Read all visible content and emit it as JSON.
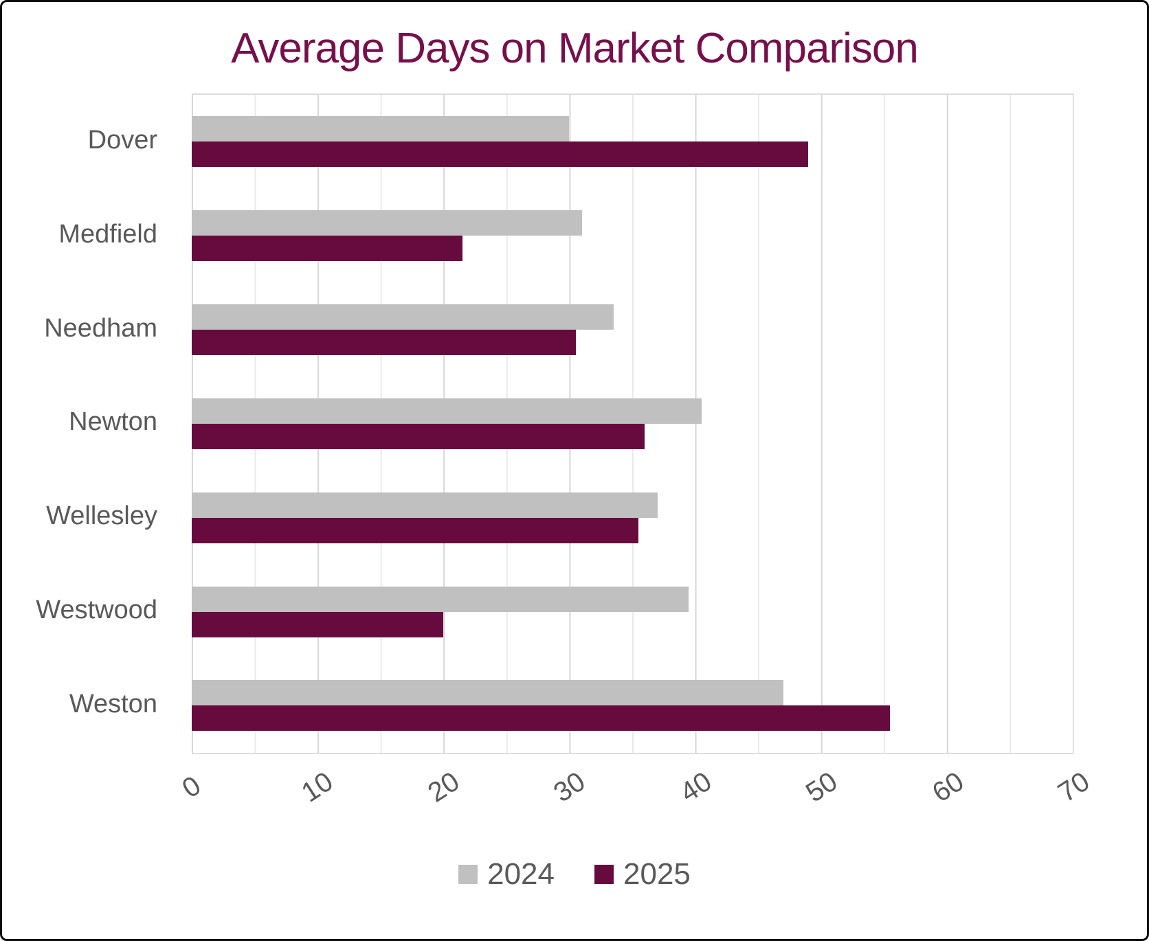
{
  "title": {
    "text": "Average Days on Market Comparison",
    "color": "#75104B"
  },
  "chart_data": {
    "type": "bar",
    "orientation": "horizontal",
    "title": "Average Days on Market Comparison",
    "xlabel": "",
    "ylabel": "",
    "categories": [
      "Dover",
      "Medfield",
      "Needham",
      "Newton",
      "Wellesley",
      "Westwood",
      "Weston"
    ],
    "series": [
      {
        "name": "2024",
        "color": "#C0C0C0",
        "values": [
          30,
          31,
          33.5,
          40.5,
          37,
          39.5,
          47
        ]
      },
      {
        "name": "2025",
        "color": "#670B3E",
        "values": [
          49,
          21.5,
          30.5,
          36,
          35.5,
          20,
          55.5
        ]
      }
    ],
    "xlim": [
      0,
      70
    ],
    "xticks": [
      0,
      10,
      20,
      30,
      40,
      50,
      60,
      70
    ],
    "minor_grid_step": 5,
    "major_grid_step": 10,
    "grid": true,
    "legend_position": "bottom",
    "tick_label_rotation_deg": -33
  },
  "legend": {
    "items": [
      {
        "label": "2024",
        "color": "#C0C0C0"
      },
      {
        "label": "2025",
        "color": "#670B3E"
      }
    ]
  },
  "colors": {
    "title": "#75104B",
    "bar_2024": "#C0C0C0",
    "bar_2025": "#670B3E",
    "axis_text": "#595959",
    "gridline_major": "#D8D8D8",
    "gridline_minor": "#EAEAEA",
    "plot_border": "#DDDDDD",
    "outer_border": "#0A0A0A",
    "background": "#FFFFFF"
  }
}
